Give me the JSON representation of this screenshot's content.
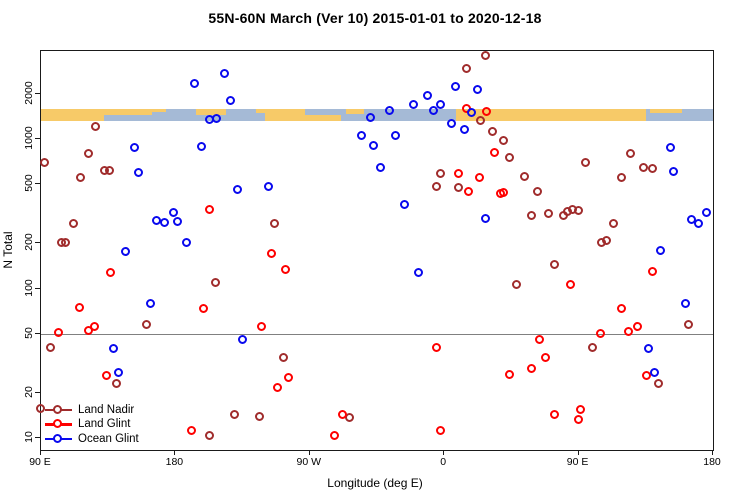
{
  "chart_data": {
    "type": "scatter",
    "title": "55N-60N March (Ver 10)   2015-01-01 to 2020-12-18",
    "xlabel": "Longitude (deg E)",
    "ylabel": "N Total",
    "x_axis": {
      "note": "longitude axis spans 450 deg starting at 90E and wrapping past 180 to 180 again",
      "domain": [
        90,
        540
      ],
      "ticks": [
        {
          "lon": 90,
          "label": "90 E"
        },
        {
          "lon": 180,
          "label": "180"
        },
        {
          "lon": 270,
          "label": "90 W"
        },
        {
          "lon": 360,
          "label": "0"
        },
        {
          "lon": 450,
          "label": "90 E"
        },
        {
          "lon": 540,
          "label": "180"
        }
      ]
    },
    "y_axis": {
      "scale": "log",
      "ticks": [
        10,
        20,
        50,
        100,
        200,
        500,
        1000,
        2000
      ],
      "range": [
        8.3,
        3900
      ],
      "grid": false
    },
    "reference_line_y": 50,
    "colors": {
      "land_nadir": "#a02c2c",
      "land_glint": "#fe0000",
      "ocean_glint": "#0909ee",
      "band_land": "#f7ca68",
      "band_ocean": "#a5bad6",
      "ref_line": "#808080"
    },
    "map_band": {
      "description": "55N-60N land/ocean strip drawn across the plot near N=1300-1600",
      "n_top": 1590,
      "n_bottom": 1320,
      "segments": [
        {
          "lon0": 90,
          "lon1": 132,
          "cover": "full"
        },
        {
          "lon0": 132,
          "lon1": 164,
          "cover": "top50"
        },
        {
          "lon0": 164,
          "lon1": 174,
          "cover": "top25"
        },
        {
          "lon0": 194,
          "lon1": 214,
          "cover": "top50"
        },
        {
          "lon0": 234,
          "lon1": 243,
          "cover": "top33"
        },
        {
          "lon0": 240,
          "lon1": 267,
          "cover": "full"
        },
        {
          "lon0": 267,
          "lon1": 291,
          "cover": "bottom50"
        },
        {
          "lon0": 294,
          "lon1": 306,
          "cover": "top40"
        },
        {
          "lon0": 368,
          "lon1": 495,
          "cover": "full"
        },
        {
          "lon0": 498,
          "lon1": 519,
          "cover": "top33"
        }
      ]
    },
    "legend": [
      {
        "label": "Land Nadir",
        "color_key": "land_nadir"
      },
      {
        "label": "Land Glint",
        "color_key": "land_glint"
      },
      {
        "label": "Ocean Glint",
        "color_key": "ocean_glint"
      }
    ],
    "series": [
      {
        "name": "Land Nadir",
        "color_key": "land_nadir",
        "points": [
          [
            127,
            1200
          ],
          [
            122,
            790
          ],
          [
            93,
            690
          ],
          [
            133,
            610
          ],
          [
            136,
            610
          ],
          [
            117,
            545
          ],
          [
            112,
            270
          ],
          [
            104,
            200
          ],
          [
            107,
            200
          ],
          [
            388,
            3600
          ],
          [
            375,
            2950
          ],
          [
            385,
            1310
          ],
          [
            393,
            1110
          ],
          [
            400,
            975
          ],
          [
            358,
            585
          ],
          [
            355,
            480
          ],
          [
            370,
            470
          ],
          [
            247,
            270
          ],
          [
            253,
            34
          ],
          [
            297,
            13.5
          ],
          [
            404,
            740
          ],
          [
            414,
            560
          ],
          [
            423,
            440
          ],
          [
            455,
            685
          ],
          [
            485,
            790
          ],
          [
            479,
            550
          ],
          [
            494,
            640
          ],
          [
            500,
            630
          ],
          [
            419,
            305
          ],
          [
            430,
            315
          ],
          [
            440,
            305
          ],
          [
            443,
            325
          ],
          [
            446,
            335
          ],
          [
            450,
            330
          ],
          [
            474,
            270
          ],
          [
            466,
            200
          ],
          [
            469,
            206
          ],
          [
            434,
            144
          ],
          [
            409,
            105
          ],
          [
            460,
            40
          ],
          [
            524,
            57
          ],
          [
            504,
            23
          ],
          [
            161,
            57
          ],
          [
            207,
            109
          ],
          [
            97,
            40
          ],
          [
            141,
            23
          ],
          [
            203,
            10.3
          ],
          [
            220,
            14.2
          ],
          [
            237,
            13.8
          ],
          [
            90,
            15.6
          ]
        ]
      },
      {
        "name": "Land Glint",
        "color_key": "land_glint",
        "points": [
          [
            203,
            337
          ],
          [
            245,
            170
          ],
          [
            137,
            127
          ],
          [
            116,
            74
          ],
          [
            102,
            50
          ],
          [
            122,
            52
          ],
          [
            126,
            55
          ],
          [
            199,
            73
          ],
          [
            238,
            55
          ],
          [
            134,
            26
          ],
          [
            191,
            11.2
          ],
          [
            254,
            132
          ],
          [
            355,
            40
          ],
          [
            256,
            25
          ],
          [
            249,
            21.5
          ],
          [
            292,
            14.2
          ],
          [
            287,
            10.3
          ],
          [
            358,
            11.2
          ],
          [
            375,
            1580
          ],
          [
            389,
            1520
          ],
          [
            370,
            585
          ],
          [
            384,
            545
          ],
          [
            377,
            440
          ],
          [
            398,
            430
          ],
          [
            394,
            800
          ],
          [
            400,
            435
          ],
          [
            500,
            129
          ],
          [
            445,
            106
          ],
          [
            479,
            73
          ],
          [
            465,
            49.5
          ],
          [
            484,
            51
          ],
          [
            490,
            55
          ],
          [
            424,
            45
          ],
          [
            428,
            34
          ],
          [
            419,
            29
          ],
          [
            404,
            26.5
          ],
          [
            496,
            26
          ],
          [
            434,
            14.2
          ],
          [
            452,
            15.3
          ],
          [
            450,
            13.2
          ]
        ]
      },
      {
        "name": "Ocean Glint",
        "color_key": "ocean_glint",
        "points": [
          [
            213,
            2730
          ],
          [
            193,
            2340
          ],
          [
            217,
            1780
          ],
          [
            203,
            1340
          ],
          [
            208,
            1360
          ],
          [
            153,
            875
          ],
          [
            198,
            885
          ],
          [
            156,
            595
          ],
          [
            222,
            456
          ],
          [
            243,
            480
          ],
          [
            168,
            283
          ],
          [
            173,
            275
          ],
          [
            179,
            320
          ],
          [
            182,
            278
          ],
          [
            188,
            200
          ],
          [
            147,
            176
          ],
          [
            311,
            1370
          ],
          [
            324,
            1540
          ],
          [
            340,
            1680
          ],
          [
            349,
            1940
          ],
          [
            358,
            1680
          ],
          [
            368,
            2240
          ],
          [
            383,
            2110
          ],
          [
            353,
            1530
          ],
          [
            365,
            1260
          ],
          [
            374,
            1140
          ],
          [
            379,
            1500
          ],
          [
            305,
            1050
          ],
          [
            313,
            900
          ],
          [
            328,
            1050
          ],
          [
            318,
            640
          ],
          [
            334,
            360
          ],
          [
            388,
            292
          ],
          [
            343,
            127
          ],
          [
            164,
            79
          ],
          [
            139,
            39.5
          ],
          [
            142,
            27
          ],
          [
            225,
            45
          ],
          [
            512,
            875
          ],
          [
            514,
            600
          ],
          [
            526,
            288
          ],
          [
            531,
            270
          ],
          [
            536,
            318
          ],
          [
            505,
            178
          ],
          [
            522,
            79
          ],
          [
            497,
            39.5
          ],
          [
            501,
            27
          ]
        ]
      }
    ]
  }
}
